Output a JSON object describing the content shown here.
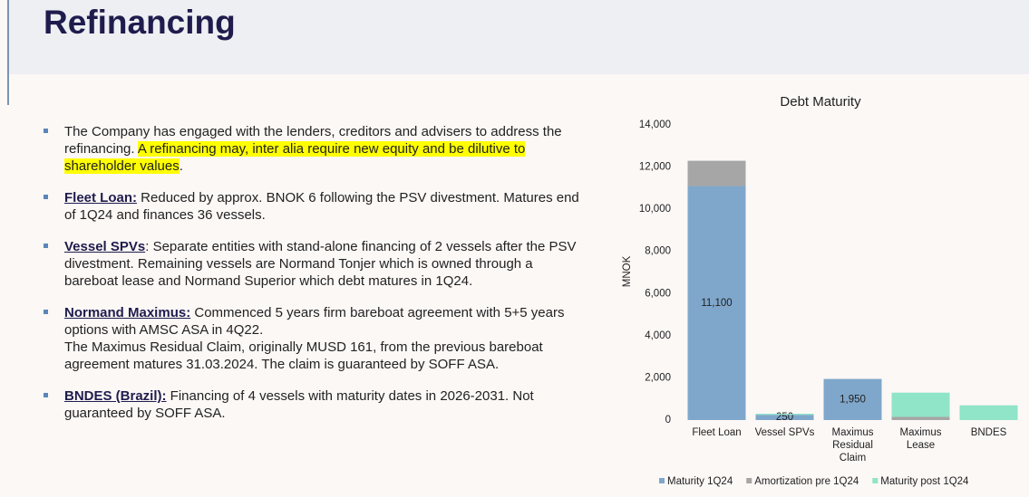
{
  "header": {
    "title": "Refinancing"
  },
  "bullets": [
    {
      "text": "The Company has engaged with the lenders, creditors and advisers to address the refinancing. ",
      "highlight": "A refinancing may, inter alia require new equity and be dilutive to shareholder values",
      "tail": "."
    },
    {
      "lead": "Fleet Loan:",
      "text": " Reduced by approx. BNOK 6 following the PSV divestment. Matures end of 1Q24 and finances 36 vessels."
    },
    {
      "lead": "Vessel SPVs",
      "text": ": Separate entities with stand-alone financing of 2 vessels after the PSV divestment. Remaining vessels are Normand Tonjer which is owned through a bareboat lease and Normand Superior which debt matures in 1Q24."
    },
    {
      "lead": "Normand Maximus:",
      "text": " Commenced 5 years firm bareboat agreement with 5+5 years options with AMSC ASA in 4Q22.",
      "text2": "The Maximus Residual Claim, originally MUSD 161, from the previous bareboat agreement matures 31.03.2024. The claim is guaranteed by SOFF ASA."
    },
    {
      "lead": "BNDES (Brazil):",
      "text": " Financing of 4 vessels with maturity dates in 2026-2031. Not guaranteed by SOFF ASA."
    }
  ],
  "chart_data": {
    "type": "stacked_bar",
    "title": "Debt Maturity",
    "ylabel": "MNOK",
    "categories": [
      "Fleet Loan",
      "Vessel SPVs",
      "Maximus Residual Claim",
      "Maximus Lease",
      "BNDES"
    ],
    "series": [
      {
        "name": "Maturity 1Q24",
        "color": "#7fa7cb",
        "values": [
          11100,
          250,
          1950,
          0,
          0
        ],
        "value_labels": [
          "11,100",
          "250",
          "1,950",
          null,
          null
        ]
      },
      {
        "name": "Amortization pre 1Q24",
        "color": "#a6a6a6",
        "values": [
          1200,
          0,
          0,
          150,
          0
        ]
      },
      {
        "name": "Maturity post 1Q24",
        "color": "#90e4c8",
        "values": [
          0,
          50,
          0,
          1150,
          700
        ]
      }
    ],
    "ylim": [
      0,
      14000
    ],
    "yticks": [
      0,
      {
        "value": 2000,
        "label": "2,000"
      },
      {
        "value": 4000,
        "label": "4,000"
      },
      {
        "value": 6000,
        "label": "6,000"
      },
      {
        "value": 8000,
        "label": "8,000"
      },
      {
        "value": 10000,
        "label": "10,000"
      },
      {
        "value": 12000,
        "label": "12,000"
      },
      {
        "value": 14000,
        "label": "14,000"
      }
    ]
  }
}
